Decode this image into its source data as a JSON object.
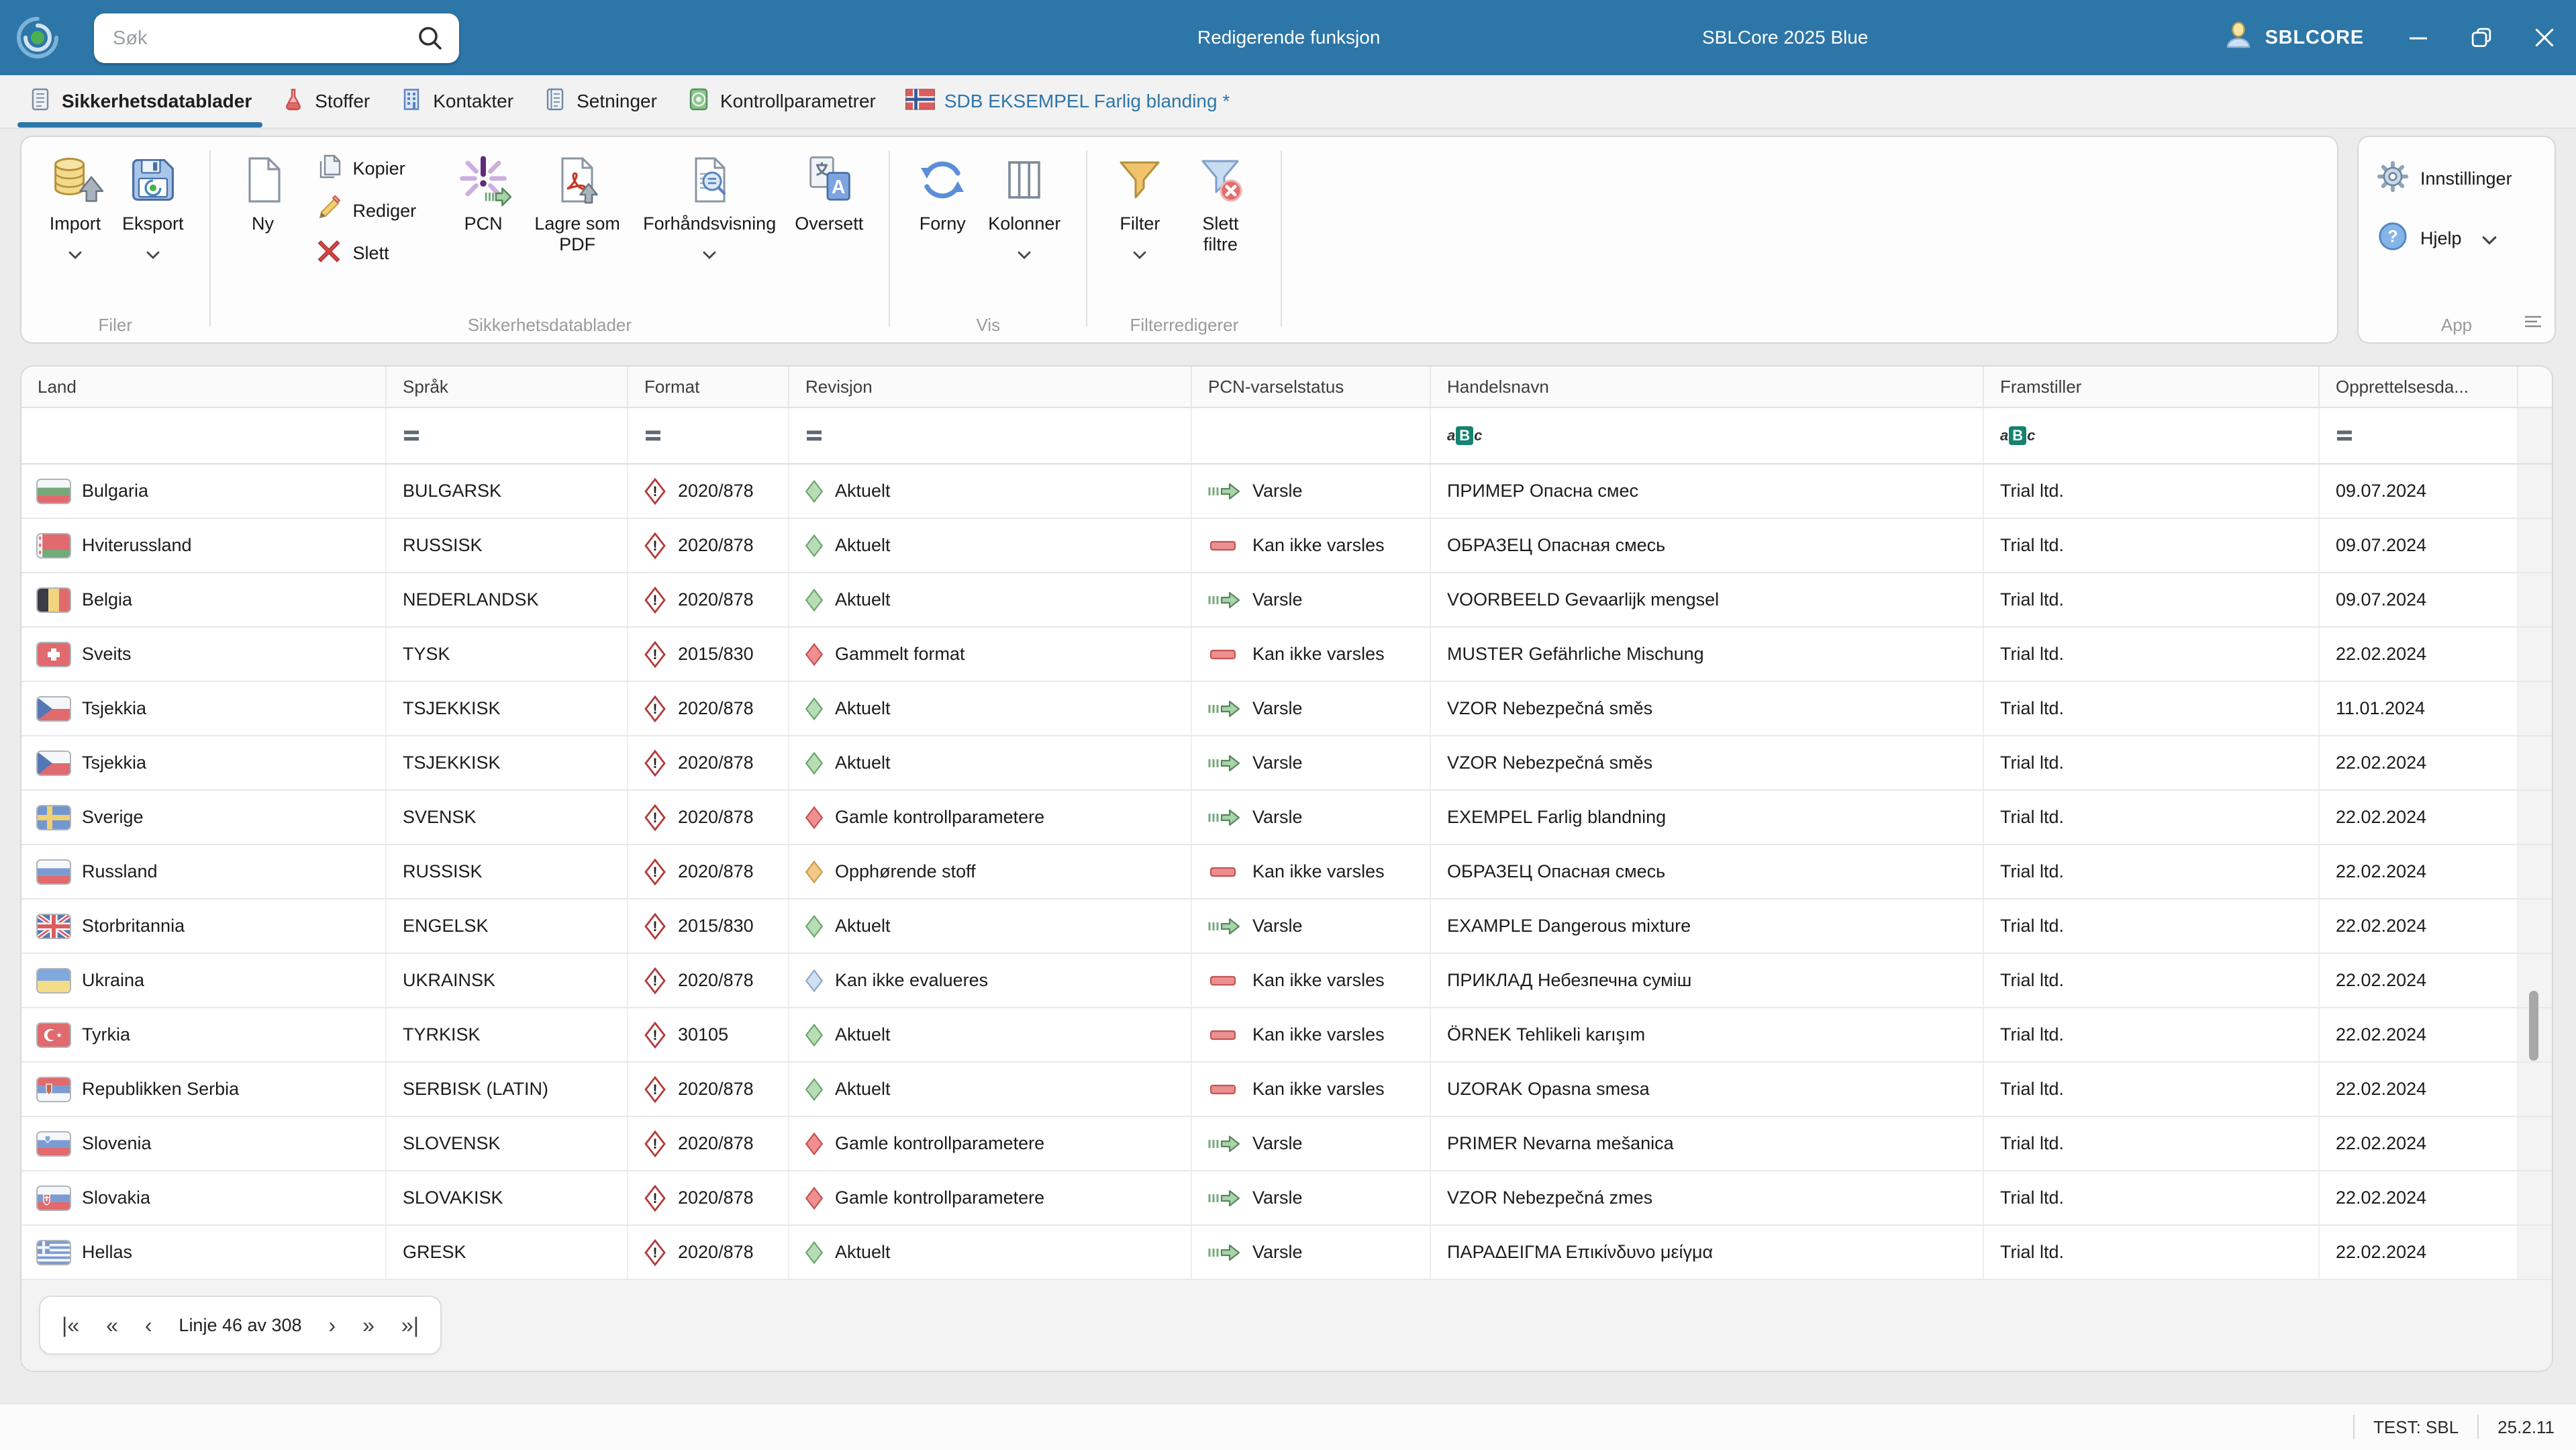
{
  "window": {
    "search_placeholder": "Søk",
    "mode_label": "Redigerende funksjon",
    "app_title": "SBLCore 2025 Blue",
    "user_label": "SBLCORE"
  },
  "colors": {
    "titlebar": "#2d76a8",
    "accent": "#2d76a8",
    "status_ok_fill": "#b8ddb6",
    "status_ok_stroke": "#6da671",
    "status_old_fill": "#ef8f8f",
    "status_old_stroke": "#c25454",
    "status_expiring_fill": "#f2c987",
    "status_expiring_stroke": "#cf9b4f",
    "status_unevaluated_fill": "#cfe0f2",
    "status_unevaluated_stroke": "#8fa8c8",
    "pcn_notify": "#a9d3ab",
    "pcn_cannot": "#ec8f8f"
  },
  "tabs": [
    {
      "label": "Sikkerhetsdatablader",
      "icon": "datasheet-icon",
      "active": true
    },
    {
      "label": "Stoffer",
      "icon": "flask-icon"
    },
    {
      "label": "Kontakter",
      "icon": "building-icon"
    },
    {
      "label": "Setninger",
      "icon": "sentences-icon"
    },
    {
      "label": "Kontrollparametrer",
      "icon": "control-parameters-icon"
    },
    {
      "label": "SDB EKSEMPEL Farlig blanding *",
      "icon": "norway-flag-icon",
      "document_tab": true
    }
  ],
  "ribbon": {
    "groups": [
      {
        "label": "Filer"
      },
      {
        "label": "Sikkerhetsdatablader"
      },
      {
        "label": "Vis"
      },
      {
        "label": "Filterredigerer"
      },
      {
        "label": "App"
      }
    ],
    "buttons": {
      "import": "Import",
      "eksport": "Eksport",
      "ny": "Ny",
      "kopier": "Kopier",
      "rediger": "Rediger",
      "slett": "Slett",
      "pcn": "PCN",
      "lagre_som_pdf": "Lagre som PDF",
      "forhandsvisning": "Forhåndsvisning",
      "oversett": "Oversett",
      "forny": "Forny",
      "kolonner": "Kolonner",
      "filter": "Filter",
      "slett_filtre": "Slett filtre",
      "innstillinger": "Innstillinger",
      "hjelp": "Hjelp"
    }
  },
  "table": {
    "columns": [
      "Land",
      "Språk",
      "Format",
      "Revisjon",
      "PCN-varselstatus",
      "Handelsnavn",
      "Framstiller",
      "Opprettelsesda..."
    ],
    "filter_icons": [
      "none",
      "equals",
      "equals",
      "equals",
      "none",
      "abc",
      "abc",
      "equals"
    ],
    "rows": [
      {
        "country": "Bulgaria",
        "flag": "bulgaria",
        "language": "BULGARSK",
        "format": "2020/878",
        "revision": "Aktuelt",
        "revision_status": "ok",
        "pcn": "Varsle",
        "pcn_status": "notify",
        "trade_name": "ПРИМЕР Опасна смес",
        "manufacturer": "Trial ltd.",
        "created": "09.07.2024"
      },
      {
        "country": "Hviterussland",
        "flag": "belarus",
        "language": "RUSSISK",
        "format": "2020/878",
        "revision": "Aktuelt",
        "revision_status": "ok",
        "pcn": "Kan ikke varsles",
        "pcn_status": "cannot",
        "trade_name": "ОБРАЗЕЦ Опасная смесь",
        "manufacturer": "Trial ltd.",
        "created": "09.07.2024"
      },
      {
        "country": "Belgia",
        "flag": "belgium",
        "language": "NEDERLANDSK",
        "format": "2020/878",
        "revision": "Aktuelt",
        "revision_status": "ok",
        "pcn": "Varsle",
        "pcn_status": "notify",
        "trade_name": "VOORBEELD Gevaarlijk mengsel",
        "manufacturer": "Trial ltd.",
        "created": "09.07.2024"
      },
      {
        "country": "Sveits",
        "flag": "switzerland",
        "language": "TYSK",
        "format": "2015/830",
        "revision": "Gammelt format",
        "revision_status": "old",
        "pcn": "Kan ikke varsles",
        "pcn_status": "cannot",
        "trade_name": "MUSTER Gefährliche Mischung",
        "manufacturer": "Trial ltd.",
        "created": "22.02.2024"
      },
      {
        "country": "Tsjekkia",
        "flag": "czechia",
        "language": "TSJEKKISK",
        "format": "2020/878",
        "revision": "Aktuelt",
        "revision_status": "ok",
        "pcn": "Varsle",
        "pcn_status": "notify",
        "trade_name": "VZOR Nebezpečná směs",
        "manufacturer": "Trial ltd.",
        "created": "11.01.2024"
      },
      {
        "country": "Tsjekkia",
        "flag": "czechia",
        "language": "TSJEKKISK",
        "format": "2020/878",
        "revision": "Aktuelt",
        "revision_status": "ok",
        "pcn": "Varsle",
        "pcn_status": "notify",
        "trade_name": "VZOR Nebezpečná směs",
        "manufacturer": "Trial ltd.",
        "created": "22.02.2024"
      },
      {
        "country": "Sverige",
        "flag": "sweden",
        "language": "SVENSK",
        "format": "2020/878",
        "revision": "Gamle kontrollparametere",
        "revision_status": "old",
        "pcn": "Varsle",
        "pcn_status": "notify",
        "trade_name": "EXEMPEL Farlig blandning",
        "manufacturer": "Trial ltd.",
        "created": "22.02.2024"
      },
      {
        "country": "Russland",
        "flag": "russia",
        "language": "RUSSISK",
        "format": "2020/878",
        "revision": "Opphørende stoff",
        "revision_status": "expiring",
        "pcn": "Kan ikke varsles",
        "pcn_status": "cannot",
        "trade_name": "ОБРАЗЕЦ Опасная смесь",
        "manufacturer": "Trial ltd.",
        "created": "22.02.2024"
      },
      {
        "country": "Storbritannia",
        "flag": "uk",
        "language": "ENGELSK",
        "format": "2015/830",
        "revision": "Aktuelt",
        "revision_status": "ok",
        "pcn": "Varsle",
        "pcn_status": "notify",
        "trade_name": "EXAMPLE Dangerous mixture",
        "manufacturer": "Trial ltd.",
        "created": "22.02.2024"
      },
      {
        "country": "Ukraina",
        "flag": "ukraine",
        "language": "UKRAINSK",
        "format": "2020/878",
        "revision": "Kan ikke evalueres",
        "revision_status": "unevaluated",
        "pcn": "Kan ikke varsles",
        "pcn_status": "cannot",
        "trade_name": "ПРИКЛАД Небезпечна суміш",
        "manufacturer": "Trial ltd.",
        "created": "22.02.2024"
      },
      {
        "country": "Tyrkia",
        "flag": "turkey",
        "language": "TYRKISK",
        "format": "30105",
        "revision": "Aktuelt",
        "revision_status": "ok",
        "pcn": "Kan ikke varsles",
        "pcn_status": "cannot",
        "trade_name": "ÖRNEK Tehlikeli karışım",
        "manufacturer": "Trial ltd.",
        "created": "22.02.2024"
      },
      {
        "country": "Republikken Serbia",
        "flag": "serbia",
        "language": "SERBISK (LATIN)",
        "format": "2020/878",
        "revision": "Aktuelt",
        "revision_status": "ok",
        "pcn": "Kan ikke varsles",
        "pcn_status": "cannot",
        "trade_name": "UZORAK Opasna smesa",
        "manufacturer": "Trial ltd.",
        "created": "22.02.2024"
      },
      {
        "country": "Slovenia",
        "flag": "slovenia",
        "language": "SLOVENSK",
        "format": "2020/878",
        "revision": "Gamle kontrollparametere",
        "revision_status": "old",
        "pcn": "Varsle",
        "pcn_status": "notify",
        "trade_name": "PRIMER Nevarna mešanica",
        "manufacturer": "Trial ltd.",
        "created": "22.02.2024"
      },
      {
        "country": "Slovakia",
        "flag": "slovakia",
        "language": "SLOVAKISK",
        "format": "2020/878",
        "revision": "Gamle kontrollparametere",
        "revision_status": "old",
        "pcn": "Varsle",
        "pcn_status": "notify",
        "trade_name": "VZOR Nebezpečná zmes",
        "manufacturer": "Trial ltd.",
        "created": "22.02.2024"
      },
      {
        "country": "Hellas",
        "flag": "greece",
        "language": "GRESK",
        "format": "2020/878",
        "revision": "Aktuelt",
        "revision_status": "ok",
        "pcn": "Varsle",
        "pcn_status": "notify",
        "trade_name": "ΠΑΡΑΔΕΙΓΜΑ Επικίνδυνο μείγμα",
        "manufacturer": "Trial ltd.",
        "created": "22.02.2024"
      }
    ]
  },
  "pagination": {
    "label": "Linje 46 av 308"
  },
  "statusbar": {
    "environment": "TEST: SBL",
    "version": "25.2.11"
  }
}
